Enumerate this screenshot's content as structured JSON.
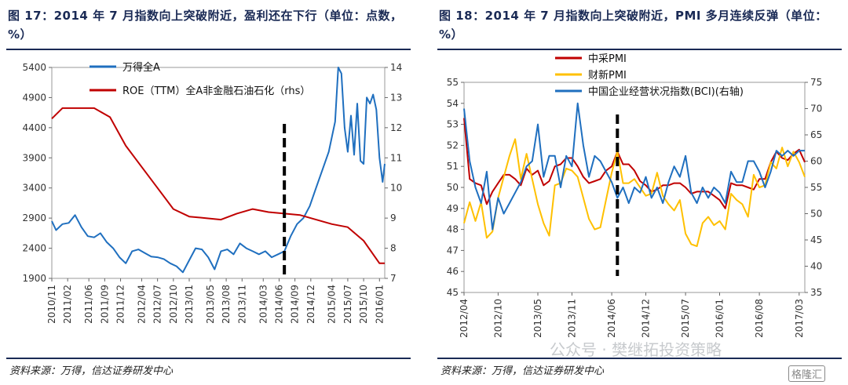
{
  "watermark": "公众号 · 樊继拓投资策略",
  "brand": "格隆汇",
  "chart_data": [
    {
      "type": "line",
      "title": "图 17：2014 年 7 月指数向上突破附近，盈利还在下行（单位：点数，%）",
      "source": "资料来源：万得，信达证券研发中心",
      "left_ylim": [
        1900,
        5400
      ],
      "left_yticks": [
        "1900",
        "2400",
        "2900",
        "3400",
        "3900",
        "4400",
        "4900",
        "5400"
      ],
      "right_ylim": [
        7,
        14
      ],
      "right_yticks": [
        "7",
        "8",
        "9",
        "10",
        "11",
        "12",
        "13",
        "14"
      ],
      "x_range": [
        2010.833,
        2016.083
      ],
      "xticks": [
        "2010/11",
        "2011/02",
        "2011/06",
        "2011/09",
        "2011/12",
        "2012/04",
        "2012/07",
        "2012/10",
        "2013/01",
        "2013/05",
        "2013/08",
        "2013/11",
        "2014/03",
        "2014/06",
        "2014/09",
        "2014/12",
        "2015/04",
        "2015/07",
        "2015/10",
        "2016/01"
      ],
      "xtick_positions": [
        2010.833,
        2011.083,
        2011.417,
        2011.667,
        2011.917,
        2012.25,
        2012.5,
        2012.75,
        2013.0,
        2013.333,
        2013.583,
        2013.833,
        2014.167,
        2014.417,
        2014.667,
        2014.917,
        2015.25,
        2015.5,
        2015.75,
        2016.0
      ],
      "grid": false,
      "legend_position": "top-left",
      "vline_x": 2014.5,
      "series": [
        {
          "name": "万得全A",
          "axis": "left",
          "color": "#1f6fbf",
          "x": [
            2010.833,
            2010.9,
            2011.0,
            2011.1,
            2011.2,
            2011.3,
            2011.4,
            2011.5,
            2011.6,
            2011.7,
            2011.8,
            2011.9,
            2012.0,
            2012.1,
            2012.2,
            2012.3,
            2012.4,
            2012.5,
            2012.6,
            2012.7,
            2012.8,
            2012.9,
            2013.0,
            2013.1,
            2013.2,
            2013.3,
            2013.4,
            2013.5,
            2013.6,
            2013.7,
            2013.8,
            2013.9,
            2014.0,
            2014.1,
            2014.2,
            2014.3,
            2014.4,
            2014.5,
            2014.6,
            2014.7,
            2014.8,
            2014.9,
            2015.0,
            2015.1,
            2015.2,
            2015.3,
            2015.35,
            2015.4,
            2015.45,
            2015.5,
            2015.55,
            2015.6,
            2015.65,
            2015.7,
            2015.75,
            2015.8,
            2015.85,
            2015.9,
            2015.95,
            2016.0,
            2016.05,
            2016.083
          ],
          "y": [
            2850,
            2700,
            2800,
            2820,
            2950,
            2750,
            2600,
            2580,
            2650,
            2500,
            2400,
            2250,
            2150,
            2350,
            2380,
            2320,
            2260,
            2250,
            2220,
            2150,
            2100,
            2000,
            2200,
            2400,
            2380,
            2250,
            2050,
            2350,
            2380,
            2300,
            2480,
            2400,
            2350,
            2300,
            2350,
            2250,
            2300,
            2350,
            2600,
            2800,
            2900,
            3100,
            3400,
            3700,
            4000,
            4500,
            5400,
            5300,
            4400,
            4000,
            4600,
            3950,
            4800,
            3850,
            3800,
            4900,
            4800,
            4950,
            4700,
            3900,
            3500,
            3800
          ]
        },
        {
          "name": "ROE（TTM）全A非金融石油石化（rhs）",
          "axis": "right",
          "color": "#c00000",
          "x": [
            2010.833,
            2011.0,
            2011.25,
            2011.5,
            2011.75,
            2012.0,
            2012.25,
            2012.5,
            2012.75,
            2013.0,
            2013.25,
            2013.5,
            2013.75,
            2014.0,
            2014.25,
            2014.5,
            2014.75,
            2015.0,
            2015.25,
            2015.5,
            2015.75,
            2016.0,
            2016.083
          ],
          "y": [
            12.3,
            12.65,
            12.65,
            12.65,
            12.35,
            11.4,
            10.7,
            10.0,
            9.3,
            9.05,
            9.0,
            8.95,
            9.15,
            9.3,
            9.2,
            9.15,
            9.1,
            8.95,
            8.8,
            8.7,
            8.25,
            7.5,
            7.5
          ]
        }
      ]
    },
    {
      "type": "line",
      "title": "图 18：2014 年 7 月指数向上突破附近，PMI 多月连续反弹（单位：%）",
      "source": "资料来源：万得，信达证券研发中心",
      "left_ylim": [
        45,
        55
      ],
      "left_yticks": [
        "45",
        "46",
        "47",
        "48",
        "49",
        "50",
        "51",
        "52",
        "53",
        "54",
        "55"
      ],
      "right_ylim": [
        35,
        75
      ],
      "right_yticks": [
        "35",
        "40",
        "45",
        "50",
        "55",
        "60",
        "65",
        "70",
        "75"
      ],
      "x_range": [
        2012.25,
        2017.25
      ],
      "xticks": [
        "2012/04",
        "2012/10",
        "2013/05",
        "2013/11",
        "2014/06",
        "2014/12",
        "2015/07",
        "2016/01",
        "2016/08",
        "2017/03"
      ],
      "xtick_positions": [
        2012.25,
        2012.75,
        2013.333,
        2013.833,
        2014.417,
        2014.917,
        2015.5,
        2016.0,
        2016.583,
        2017.167
      ],
      "grid": false,
      "legend_position": "top-center",
      "vline_x": 2014.5,
      "series": [
        {
          "name": "中采PMI",
          "axis": "left",
          "color": "#c00000",
          "x": [
            2012.25,
            2012.333,
            2012.417,
            2012.5,
            2012.583,
            2012.667,
            2012.75,
            2012.833,
            2012.917,
            2013.0,
            2013.083,
            2013.167,
            2013.25,
            2013.333,
            2013.417,
            2013.5,
            2013.583,
            2013.667,
            2013.75,
            2013.833,
            2013.917,
            2014.0,
            2014.083,
            2014.167,
            2014.25,
            2014.333,
            2014.417,
            2014.5,
            2014.583,
            2014.667,
            2014.75,
            2014.833,
            2014.917,
            2015.0,
            2015.083,
            2015.167,
            2015.25,
            2015.333,
            2015.417,
            2015.5,
            2015.583,
            2015.667,
            2015.75,
            2015.833,
            2015.917,
            2016.0,
            2016.083,
            2016.167,
            2016.25,
            2016.333,
            2016.417,
            2016.5,
            2016.583,
            2016.667,
            2016.75,
            2016.833,
            2016.917,
            2017.0,
            2017.083,
            2017.167,
            2017.25
          ],
          "y": [
            53.3,
            50.4,
            50.2,
            50.1,
            49.2,
            49.8,
            50.2,
            50.6,
            50.6,
            50.4,
            50.1,
            50.9,
            50.6,
            50.8,
            50.1,
            50.3,
            51.0,
            51.1,
            51.4,
            51.4,
            51.0,
            50.5,
            50.2,
            50.3,
            50.4,
            50.8,
            51.0,
            51.7,
            51.1,
            51.1,
            50.8,
            50.3,
            50.1,
            49.8,
            49.9,
            50.1,
            50.1,
            50.2,
            50.2,
            50.0,
            49.7,
            49.8,
            49.8,
            49.8,
            49.6,
            49.4,
            49.0,
            50.2,
            50.1,
            50.1,
            50.0,
            49.9,
            50.4,
            50.4,
            51.2,
            51.7,
            51.4,
            51.3,
            51.6,
            51.8,
            51.2
          ]
        },
        {
          "name": "财新PMI",
          "axis": "left",
          "color": "#ffc000",
          "x": [
            2012.25,
            2012.333,
            2012.417,
            2012.5,
            2012.583,
            2012.667,
            2012.75,
            2012.833,
            2012.917,
            2013.0,
            2013.083,
            2013.167,
            2013.25,
            2013.333,
            2013.417,
            2013.5,
            2013.583,
            2013.667,
            2013.75,
            2013.833,
            2013.917,
            2014.0,
            2014.083,
            2014.167,
            2014.25,
            2014.333,
            2014.417,
            2014.5,
            2014.583,
            2014.667,
            2014.75,
            2014.833,
            2014.917,
            2015.0,
            2015.083,
            2015.167,
            2015.25,
            2015.333,
            2015.417,
            2015.5,
            2015.583,
            2015.667,
            2015.75,
            2015.833,
            2015.917,
            2016.0,
            2016.083,
            2016.167,
            2016.25,
            2016.333,
            2016.417,
            2016.5,
            2016.583,
            2016.667,
            2016.75,
            2016.833,
            2016.917,
            2017.0,
            2017.083,
            2017.167,
            2017.25
          ],
          "y": [
            48.3,
            49.3,
            48.4,
            49.3,
            47.6,
            47.9,
            49.5,
            50.5,
            51.5,
            52.3,
            50.4,
            51.6,
            50.4,
            49.2,
            48.3,
            47.7,
            50.1,
            50.2,
            50.9,
            50.8,
            50.5,
            49.5,
            48.5,
            48.0,
            48.1,
            49.4,
            50.7,
            51.7,
            50.2,
            50.2,
            50.4,
            50.0,
            49.6,
            49.7,
            50.7,
            49.6,
            49.2,
            48.9,
            49.4,
            47.8,
            47.3,
            47.2,
            48.3,
            48.6,
            48.2,
            48.4,
            48.0,
            49.7,
            49.4,
            49.2,
            48.6,
            50.6,
            50.0,
            50.1,
            51.2,
            50.9,
            51.9,
            51.0,
            51.7,
            51.2,
            50.5
          ]
        },
        {
          "name": "中国企业经营状况指数(BCI)(右轴)",
          "axis": "right",
          "color": "#1f6fbf",
          "x": [
            2012.25,
            2012.333,
            2012.417,
            2012.5,
            2012.583,
            2012.667,
            2012.75,
            2012.833,
            2012.917,
            2013.0,
            2013.083,
            2013.167,
            2013.25,
            2013.333,
            2013.417,
            2013.5,
            2013.583,
            2013.667,
            2013.75,
            2013.833,
            2013.917,
            2014.0,
            2014.083,
            2014.167,
            2014.25,
            2014.333,
            2014.417,
            2014.5,
            2014.583,
            2014.667,
            2014.75,
            2014.833,
            2014.917,
            2015.0,
            2015.083,
            2015.167,
            2015.25,
            2015.333,
            2015.417,
            2015.5,
            2015.583,
            2015.667,
            2015.75,
            2015.833,
            2015.917,
            2016.0,
            2016.083,
            2016.167,
            2016.25,
            2016.333,
            2016.417,
            2016.5,
            2016.583,
            2016.667,
            2016.75,
            2016.833,
            2016.917,
            2017.0,
            2017.083,
            2017.167,
            2017.25
          ],
          "y": [
            70,
            60,
            55,
            52,
            58,
            47,
            53,
            50,
            52,
            54,
            56,
            59,
            60,
            67,
            57,
            61,
            61,
            55,
            61,
            59,
            71,
            63,
            57,
            61,
            60,
            58,
            56,
            53,
            55,
            52,
            55,
            54,
            57,
            53,
            55,
            52,
            56,
            59,
            57,
            61,
            54,
            52,
            55,
            53,
            55,
            54,
            52,
            58,
            56,
            56,
            60,
            60,
            58,
            55,
            58,
            62,
            61,
            62,
            61,
            62,
            62
          ]
        }
      ]
    }
  ]
}
